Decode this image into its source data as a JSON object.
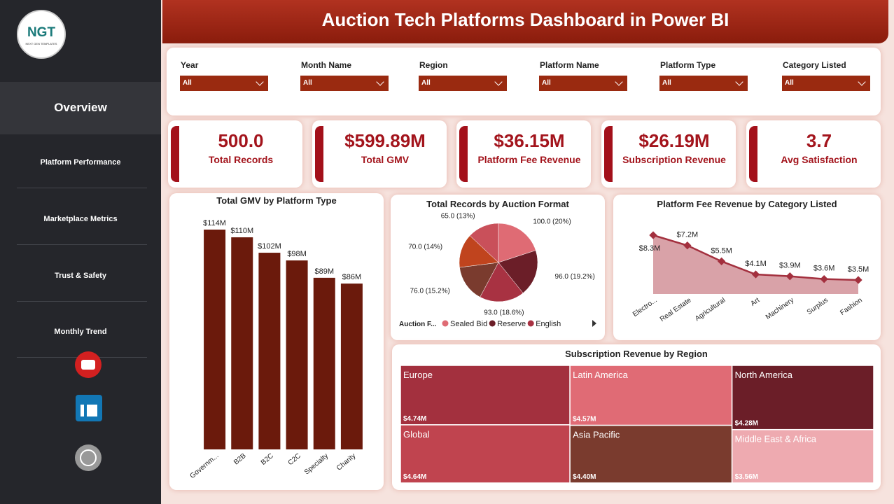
{
  "sidebar": {
    "logo": "NGT",
    "logo_subtitle": "NEXT GEN TEMPLATES",
    "nav": [
      "Overview",
      "Platform Performance",
      "Marketplace Metrics",
      "Trust & Safety",
      "Monthly Trend"
    ]
  },
  "header": {
    "title": "Auction Tech Platforms Dashboard in Power BI"
  },
  "filters": [
    {
      "label": "Year",
      "value": "All"
    },
    {
      "label": "Month Name",
      "value": "All"
    },
    {
      "label": "Region",
      "value": "All"
    },
    {
      "label": "Platform Name",
      "value": "All"
    },
    {
      "label": "Platform Type",
      "value": "All"
    },
    {
      "label": "Category Listed",
      "value": "All"
    }
  ],
  "kpis": [
    {
      "value": "500.0",
      "label": "Total Records"
    },
    {
      "value": "$599.89M",
      "label": "Total GMV"
    },
    {
      "value": "$36.15M",
      "label": "Platform Fee Revenue"
    },
    {
      "value": "$26.19M",
      "label": "Subscription Revenue"
    },
    {
      "value": "3.7",
      "label": "Avg Satisfaction"
    }
  ],
  "chart_data": [
    {
      "type": "bar",
      "title": "Total GMV by Platform Type",
      "categories": [
        "Governm...",
        "B2B",
        "B2C",
        "C2C",
        "Specialty",
        "Charity"
      ],
      "values": [
        114,
        110,
        102,
        98,
        89,
        86
      ],
      "value_labels": [
        "$114M",
        "$110M",
        "$102M",
        "$98M",
        "$89M",
        "$86M"
      ],
      "color": "#6b1a0c"
    },
    {
      "type": "pie",
      "title": "Total Records by Auction Format",
      "legend_title": "Auction F...",
      "categories": [
        "Sealed Bid",
        "Reserve",
        "English",
        null,
        null,
        null
      ],
      "values": [
        100,
        96,
        93,
        76,
        70,
        65
      ],
      "value_labels": [
        "100.0 (20%)",
        "96.0 (19.2%)",
        "93.0 (18.6%)",
        "76.0 (15.2%)",
        "70.0 (14%)",
        "65.0 (13%)"
      ],
      "colors": [
        "#df6b74",
        "#6b1e28",
        "#a83242",
        "#7a3b2e",
        "#c0441e",
        "#c9505a"
      ]
    },
    {
      "type": "area",
      "title": "Platform Fee Revenue by Category Listed",
      "categories": [
        "Electro...",
        "Real Estate",
        "Agricultural",
        "Art",
        "Machinery",
        "Surplus",
        "Fashion"
      ],
      "values": [
        8.3,
        7.2,
        5.5,
        4.1,
        3.9,
        3.6,
        3.5
      ],
      "value_labels": [
        "$8.3M",
        "$7.2M",
        "$5.5M",
        "$4.1M",
        "$3.9M",
        "$3.6M",
        "$3.5M"
      ],
      "color": "#a3303e"
    },
    {
      "type": "treemap",
      "title": "Subscription Revenue by Region",
      "categories": [
        "Europe",
        "Global",
        "Latin America",
        "Asia Pacific",
        "North America",
        "Middle East & Africa"
      ],
      "values": [
        4.74,
        4.64,
        4.57,
        4.4,
        4.28,
        3.56
      ],
      "value_labels": [
        "$4.74M",
        "$4.64M",
        "$4.57M",
        "$4.40M",
        "$4.28M",
        "$3.56M"
      ],
      "colors": [
        "#a3303e",
        "#c0444f",
        "#e06b75",
        "#7a3b2e",
        "#6b1e28",
        "#eeaab0"
      ]
    }
  ]
}
